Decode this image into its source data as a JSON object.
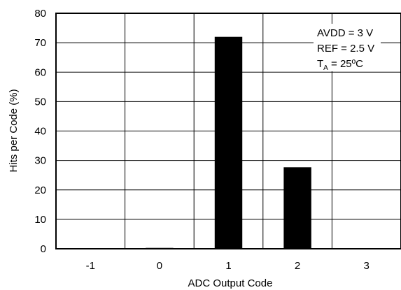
{
  "chart_data": {
    "type": "bar",
    "title": "",
    "xlabel": "ADC Output Code",
    "ylabel": "Hits per Code (%)",
    "categories": [
      "-1",
      "0",
      "1",
      "2",
      "3"
    ],
    "values": [
      0,
      0.3,
      72,
      27.7,
      0
    ],
    "ylim": [
      0,
      80
    ],
    "yticks": [
      0,
      10,
      20,
      30,
      40,
      50,
      60,
      70,
      80
    ],
    "grid": true,
    "bar_color": "#000000",
    "annotation": {
      "line1": "AVDD = 3 V",
      "line2": "REF = 2.5 V",
      "line3_main": "T",
      "line3_sub": "A",
      "line3_rest": " = 25ºC"
    }
  }
}
